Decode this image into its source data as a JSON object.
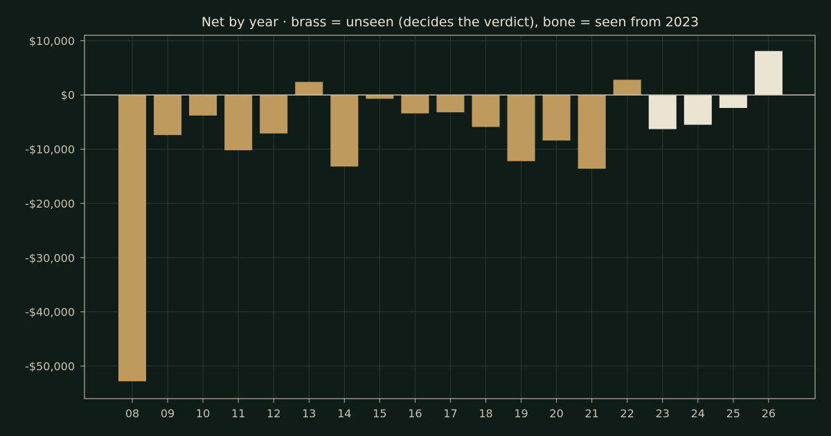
{
  "chart_data": {
    "type": "bar",
    "title": "Net by year  ·  brass = unseen (decides the verdict), bone = seen from 2023",
    "xlabel": "",
    "ylabel": "",
    "categories": [
      "08",
      "09",
      "10",
      "11",
      "12",
      "13",
      "14",
      "15",
      "16",
      "17",
      "18",
      "19",
      "20",
      "21",
      "22",
      "23",
      "24",
      "25",
      "26"
    ],
    "values": [
      -52800,
      -7400,
      -3800,
      -10200,
      -7100,
      2400,
      -13200,
      -700,
      -3400,
      -3200,
      -5900,
      -12200,
      -8400,
      -13600,
      2800,
      -6300,
      -5500,
      -2400,
      8100
    ],
    "groups": [
      "unseen",
      "unseen",
      "unseen",
      "unseen",
      "unseen",
      "unseen",
      "unseen",
      "unseen",
      "unseen",
      "unseen",
      "unseen",
      "unseen",
      "unseen",
      "unseen",
      "unseen",
      "seen",
      "seen",
      "seen",
      "seen"
    ],
    "group_colors": {
      "unseen": "#bf9a5f",
      "seen": "#ece4d3"
    },
    "ylim": [
      -56000,
      11000
    ],
    "yticks": [
      10000,
      0,
      -10000,
      -20000,
      -30000,
      -40000,
      -50000
    ],
    "ytick_labels": [
      "$10,000",
      "$0",
      "-$10,000",
      "-$20,000",
      "-$30,000",
      "-$40,000",
      "-$50,000"
    ],
    "grid": true,
    "legend": "none"
  }
}
